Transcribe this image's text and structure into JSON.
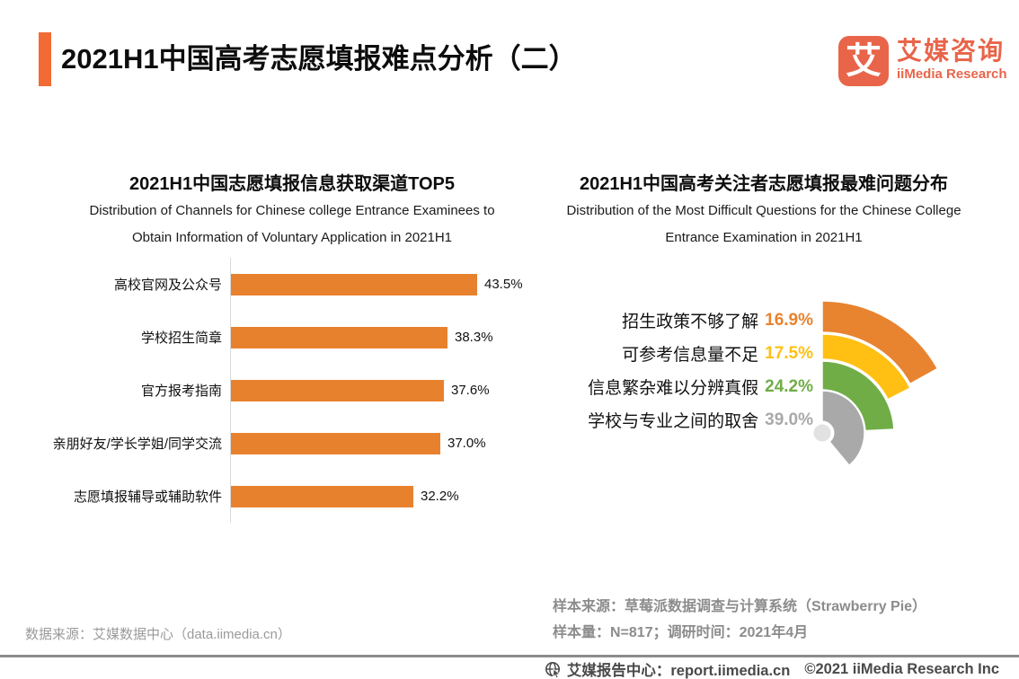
{
  "header": {
    "title": "2021H1中国高考志愿填报难点分析（二）",
    "accent_color": "#F26B35",
    "logo": {
      "mark": "艾",
      "name_cn": "艾媒咨询",
      "name_en": "iiMedia Research",
      "brand_color": "#E8654A"
    }
  },
  "chart_data": [
    {
      "type": "bar",
      "orientation": "horizontal",
      "title": "2021H1中国志愿填报信息获取渠道TOP5",
      "subtitle_lines": [
        "Distribution of Channels for Chinese college Entrance Examinees to",
        "Obtain Information of Voluntary Application in 2021H1"
      ],
      "categories": [
        "高校官网及公众号",
        "学校招生简章",
        "官方报考指南",
        "亲朋好友/学长学姐/同学交流",
        "志愿填报辅导或辅助软件"
      ],
      "values": [
        43.5,
        38.3,
        37.6,
        37.0,
        32.2
      ],
      "labels": [
        "43.5%",
        "38.3%",
        "37.6%",
        "37.0%",
        "32.2%"
      ],
      "unit": "%",
      "xlim": [
        0,
        46
      ],
      "grid": false,
      "legend": "none",
      "bar_color": "#E8812E",
      "axis_color": "#D9D9D9"
    },
    {
      "type": "pie",
      "variant": "fan-radial",
      "title": "2021H1中国高考关注者志愿填报最难问题分布",
      "subtitle_lines": [
        "Distribution of the Most Difficult Questions for the Chinese College",
        "Entrance Examination in 2021H1"
      ],
      "categories": [
        "招生政策不够了解",
        "可参考信息量不足",
        "信息繁杂难以分辨真假",
        "学校与专业之间的取舍"
      ],
      "values": [
        16.9,
        17.5,
        24.2,
        39.0
      ],
      "labels": [
        "16.9%",
        "17.5%",
        "24.2%",
        "39.0%"
      ],
      "colors": [
        "#E8832F",
        "#FFC013",
        "#70AD47",
        "#A9A9A9"
      ],
      "hub_color": "#E2E2E2",
      "start_angle_deg": 0,
      "direction": "clockwise",
      "angle_per_percent_deg": 3.6,
      "ring_order": "outermost-to-innermost",
      "legend": "none"
    }
  ],
  "footnotes": {
    "data_source": "数据来源：艾媒数据中心（data.iimedia.cn）",
    "sample_source": "样本来源：草莓派数据调查与计算系统（Strawberry Pie）",
    "sample_size": "样本量：N=817；调研时间：2021年4月"
  },
  "footer": {
    "site": "艾媒报告中心：report.iimedia.cn",
    "copyright": "©2021  iiMedia Research Inc"
  }
}
